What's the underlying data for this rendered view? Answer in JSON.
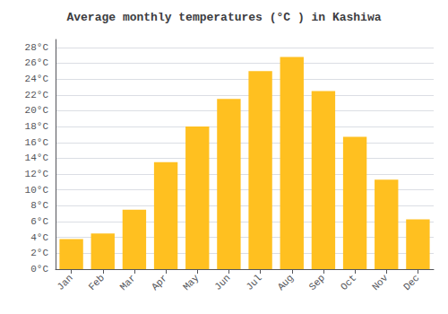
{
  "chart_data": {
    "type": "bar",
    "title": "Average monthly temperatures (°C ) in Kashiwa",
    "categories": [
      "Jan",
      "Feb",
      "Mar",
      "Apr",
      "May",
      "Jun",
      "Jul",
      "Aug",
      "Sep",
      "Oct",
      "Nov",
      "Dec"
    ],
    "values": [
      3.8,
      4.5,
      7.5,
      13.5,
      18.0,
      21.5,
      25.0,
      26.8,
      22.5,
      16.7,
      11.3,
      6.3
    ],
    "color": "#FFC020",
    "ylim": [
      0,
      29
    ],
    "yticks": [
      {
        "value": 0,
        "label": "0°C"
      },
      {
        "value": 2,
        "label": "2°C"
      },
      {
        "value": 4,
        "label": "4°C"
      },
      {
        "value": 6,
        "label": "6°C"
      },
      {
        "value": 8,
        "label": "8°C"
      },
      {
        "value": 10,
        "label": "10°C"
      },
      {
        "value": 12,
        "label": "12°C"
      },
      {
        "value": 14,
        "label": "14°C"
      },
      {
        "value": 16,
        "label": "16°C"
      },
      {
        "value": 18,
        "label": "18°C"
      },
      {
        "value": 20,
        "label": "20°C"
      },
      {
        "value": 22,
        "label": "22°C"
      },
      {
        "value": 24,
        "label": "24°C"
      },
      {
        "value": 26,
        "label": "26°C"
      },
      {
        "value": 28,
        "label": "28°C"
      }
    ],
    "grid": true
  }
}
